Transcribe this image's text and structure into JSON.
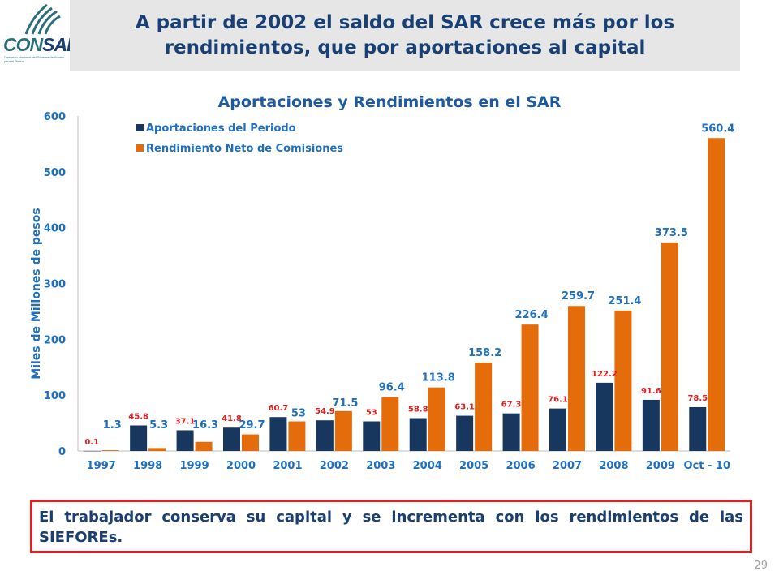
{
  "header": {
    "logo_text_a": "CON",
    "logo_text_b": "SAR",
    "logo_subtitle": "Comisión Nacional del Sistema de Ahorro para el Retiro",
    "title": "A partir de 2002 el saldo del SAR crece más por los rendimientos, que por aportaciones al capital"
  },
  "chart_data": {
    "type": "bar",
    "title": "Aportaciones y Rendimientos en el SAR",
    "ylabel": "Miles de Millones de pesos",
    "xlabel": "",
    "ylim": [
      0,
      600
    ],
    "yticks": [
      0,
      100,
      200,
      300,
      400,
      500,
      600
    ],
    "grid": false,
    "legend_position": "top-left",
    "categories": [
      "1997",
      "1998",
      "1999",
      "2000",
      "2001",
      "2002",
      "2003",
      "2004",
      "2005",
      "2006",
      "2007",
      "2008",
      "2009",
      "Oct - 10"
    ],
    "series": [
      {
        "name": "Aportaciones del Periodo",
        "color": "#17375e",
        "label_color": "#e01f1f",
        "values": [
          0.1,
          45.8,
          37.1,
          41.8,
          60.7,
          54.9,
          53,
          58.8,
          63.1,
          67.3,
          76.1,
          122.2,
          91.6,
          78.5
        ]
      },
      {
        "name": "Rendimiento Neto de Comisiones",
        "color": "#e46c0a",
        "label_color": "#1f6fbf",
        "values": [
          1.3,
          5.3,
          16.3,
          29.7,
          53,
          71.5,
          96.4,
          113.8,
          158.2,
          226.4,
          259.7,
          251.4,
          373.5,
          560.4
        ]
      }
    ]
  },
  "callout": {
    "text": "El trabajador conserva su capital y se incrementa con los rendimientos de las SIEFOREs."
  },
  "footer": {
    "page_number": "29"
  },
  "colors": {
    "title": "#1a3f73",
    "accent_border": "#e01f1f",
    "header_bg": "#e6e6e6"
  }
}
